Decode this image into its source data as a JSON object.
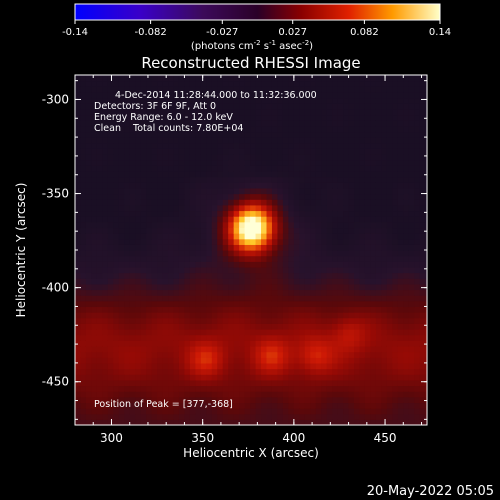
{
  "colorbar": {
    "ticks": [
      "-0.14",
      "-0.082",
      "-0.027",
      "0.027",
      "0.082",
      "0.14"
    ],
    "label_main": "(photons cm",
    "label_exp1": "-2",
    "label_mid": " s",
    "label_exp2": "-1",
    "label_mid2": " asec",
    "label_exp3": "-2",
    "label_end": ")"
  },
  "chart_data": {
    "type": "heatmap",
    "title": "Reconstructed RHESSI Image",
    "xlabel": "Heliocentric X (arcsec)",
    "ylabel": "Heliocentric Y (arcsec)",
    "xlim": [
      280,
      473
    ],
    "ylim": [
      -473,
      -287
    ],
    "xticks": [
      "300",
      "350",
      "400",
      "450"
    ],
    "yticks": [
      "-300",
      "-350",
      "-400",
      "-450"
    ],
    "annotations": [
      "4-Dec-2014 11:28:44.000 to 11:32:36.000",
      "Detectors: 3F 6F 9F, Att 0",
      "Energy Range: 6.0 - 12.0 keV",
      "Clean    Total counts: 7.80E+04"
    ],
    "peak_label": "Position of Peak = [377,-368]",
    "peak": {
      "x": 377,
      "y": -368
    },
    "secondary_sources": [
      {
        "x": 352,
        "y": -438,
        "level": 0.45
      },
      {
        "x": 388,
        "y": -436,
        "level": 0.45
      },
      {
        "x": 412,
        "y": -436,
        "level": 0.45
      },
      {
        "x": 430,
        "y": -424,
        "level": 0.4
      }
    ],
    "colorbar_range": [
      -0.14,
      0.14
    ]
  },
  "timestamp": "20-May-2022 05:05"
}
